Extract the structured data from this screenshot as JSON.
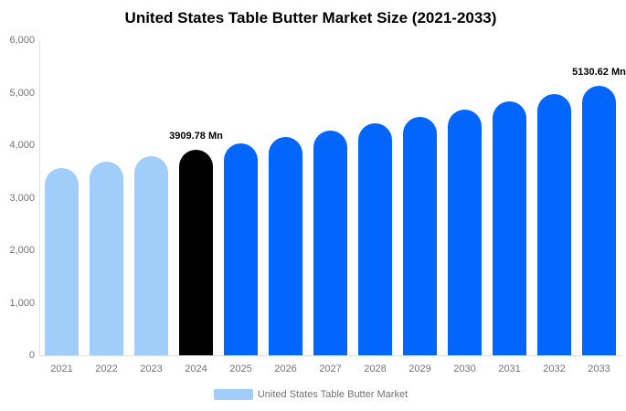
{
  "title": "United States Table Butter Market Size (2021-2033)",
  "legend": {
    "label": "United States Table Butter Market"
  },
  "colors": {
    "historical_bar": "#a0cdfa",
    "base_year_bar": "#000000",
    "forecast_bar": "#0366fc",
    "axis_text": "#737373",
    "axis_line": "#e0e0e0",
    "title_text": "#000000",
    "data_label_text": "#000000"
  },
  "chart_data": {
    "type": "bar",
    "title": "United States Table Butter Market Size (2021-2033)",
    "xlabel": "",
    "ylabel": "",
    "unit": "Mn",
    "ylim": [
      0,
      6000
    ],
    "ytick_step": 1000,
    "ytick_labels": [
      "0",
      "1,000",
      "2,000",
      "3,000",
      "4,000",
      "5,000",
      "6,000"
    ],
    "grid": false,
    "legend_position": "bottom",
    "categories": [
      "2021",
      "2022",
      "2023",
      "2024",
      "2025",
      "2026",
      "2027",
      "2028",
      "2029",
      "2030",
      "2031",
      "2032",
      "2033"
    ],
    "values": [
      3570,
      3680,
      3790,
      3909.78,
      4030,
      4155,
      4280,
      4410,
      4545,
      4685,
      4830,
      4980,
      5130.62
    ],
    "series": [
      {
        "name": "United States Table Butter Market",
        "values": [
          3570,
          3680,
          3790,
          3909.78,
          4030,
          4155,
          4280,
          4410,
          4545,
          4685,
          4830,
          4980,
          5130.62
        ]
      }
    ],
    "bars": [
      {
        "year": "2021",
        "value": 3570,
        "color_key": "historical_bar"
      },
      {
        "year": "2022",
        "value": 3680,
        "color_key": "historical_bar"
      },
      {
        "year": "2023",
        "value": 3790,
        "color_key": "historical_bar"
      },
      {
        "year": "2024",
        "value": 3909.78,
        "color_key": "base_year_bar",
        "label": "3909.78 Mn"
      },
      {
        "year": "2025",
        "value": 4030,
        "color_key": "forecast_bar"
      },
      {
        "year": "2026",
        "value": 4155,
        "color_key": "forecast_bar"
      },
      {
        "year": "2027",
        "value": 4280,
        "color_key": "forecast_bar"
      },
      {
        "year": "2028",
        "value": 4410,
        "color_key": "forecast_bar"
      },
      {
        "year": "2029",
        "value": 4545,
        "color_key": "forecast_bar"
      },
      {
        "year": "2030",
        "value": 4685,
        "color_key": "forecast_bar"
      },
      {
        "year": "2031",
        "value": 4830,
        "color_key": "forecast_bar"
      },
      {
        "year": "2032",
        "value": 4980,
        "color_key": "forecast_bar"
      },
      {
        "year": "2033",
        "value": 5130.62,
        "color_key": "forecast_bar",
        "label": "5130.62 Mn"
      }
    ]
  }
}
